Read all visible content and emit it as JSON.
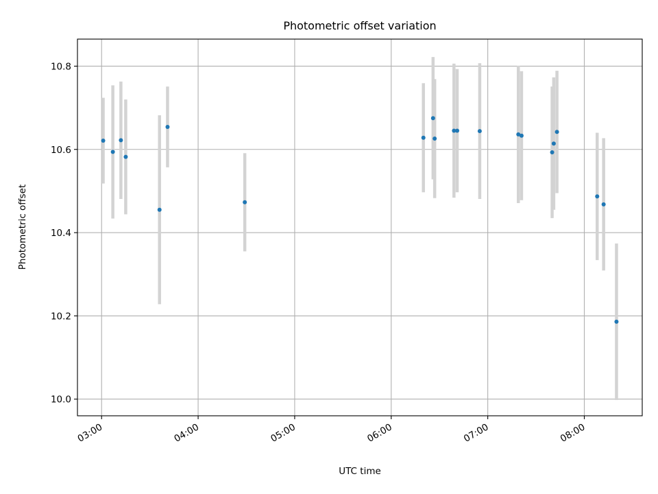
{
  "chart_data": {
    "type": "scatter",
    "title": "Photometric offset variation",
    "xlabel": "UTC time",
    "ylabel": "Photometric offset",
    "x_tick_labels": [
      "03:00",
      "04:00",
      "05:00",
      "06:00",
      "07:00",
      "08:00"
    ],
    "x_ticks": [
      "03:00",
      "04:00",
      "05:00",
      "06:00",
      "07:00",
      "08:00"
    ],
    "y_ticks": [
      10.0,
      10.2,
      10.4,
      10.6,
      10.8
    ],
    "y_tick_labels": [
      "10.0",
      "10.2",
      "10.4",
      "10.6",
      "10.8"
    ],
    "xlim": [
      "02:45",
      "08:36"
    ],
    "ylim": [
      9.96,
      10.865
    ],
    "grid": true,
    "error_bar_color": "#d3d3d3",
    "point_color": "#1f77b4",
    "points": [
      {
        "time": "03:01",
        "y": 10.621,
        "err": 0.103
      },
      {
        "time": "03:07",
        "y": 10.594,
        "err": 0.16
      },
      {
        "time": "03:12",
        "y": 10.622,
        "err": 0.141
      },
      {
        "time": "03:15",
        "y": 10.582,
        "err": 0.138
      },
      {
        "time": "03:36",
        "y": 10.455,
        "err": 0.227
      },
      {
        "time": "03:41",
        "y": 10.654,
        "err": 0.097
      },
      {
        "time": "04:29",
        "y": 10.473,
        "err": 0.118
      },
      {
        "time": "06:20",
        "y": 10.628,
        "err": 0.131
      },
      {
        "time": "06:26",
        "y": 10.675,
        "err": 0.147
      },
      {
        "time": "06:27",
        "y": 10.626,
        "err": 0.143
      },
      {
        "time": "06:39",
        "y": 10.645,
        "err": 0.161
      },
      {
        "time": "06:41",
        "y": 10.645,
        "err": 0.148
      },
      {
        "time": "06:55",
        "y": 10.644,
        "err": 0.163
      },
      {
        "time": "07:19",
        "y": 10.636,
        "err": 0.165
      },
      {
        "time": "07:21",
        "y": 10.633,
        "err": 0.155
      },
      {
        "time": "07:40",
        "y": 10.593,
        "err": 0.158
      },
      {
        "time": "07:41",
        "y": 10.614,
        "err": 0.159
      },
      {
        "time": "07:43",
        "y": 10.642,
        "err": 0.147
      },
      {
        "time": "08:08",
        "y": 10.487,
        "err": 0.153
      },
      {
        "time": "08:12",
        "y": 10.468,
        "err": 0.159
      },
      {
        "time": "08:20",
        "y": 10.186,
        "err": 0.188
      }
    ]
  }
}
